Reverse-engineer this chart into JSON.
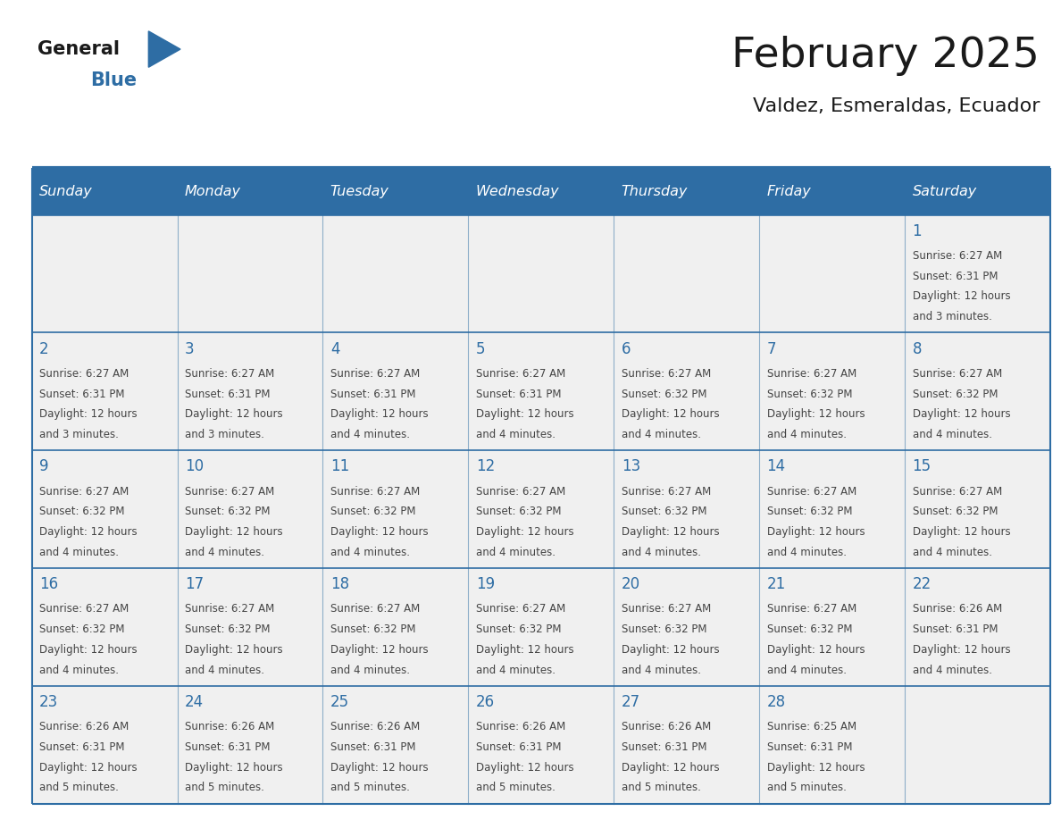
{
  "title": "February 2025",
  "subtitle": "Valdez, Esmeraldas, Ecuador",
  "days_of_week": [
    "Sunday",
    "Monday",
    "Tuesday",
    "Wednesday",
    "Thursday",
    "Friday",
    "Saturday"
  ],
  "header_bg_color": "#2E6DA4",
  "header_text_color": "#FFFFFF",
  "cell_bg_color": "#F0F0F0",
  "day_number_color": "#2E6DA4",
  "info_text_color": "#444444",
  "border_color": "#2E6DA4",
  "title_color": "#1a1a1a",
  "subtitle_color": "#1a1a1a",
  "logo_general_color": "#1a1a1a",
  "logo_blue_color": "#2E6DA4",
  "weeks": [
    [
      null,
      null,
      null,
      null,
      null,
      null,
      1
    ],
    [
      2,
      3,
      4,
      5,
      6,
      7,
      8
    ],
    [
      9,
      10,
      11,
      12,
      13,
      14,
      15
    ],
    [
      16,
      17,
      18,
      19,
      20,
      21,
      22
    ],
    [
      23,
      24,
      25,
      26,
      27,
      28,
      null
    ]
  ],
  "cell_data": {
    "1": {
      "sunrise": "6:27 AM",
      "sunset": "6:31 PM",
      "daylight_line1": "Daylight: 12 hours",
      "daylight_line2": "and 3 minutes."
    },
    "2": {
      "sunrise": "6:27 AM",
      "sunset": "6:31 PM",
      "daylight_line1": "Daylight: 12 hours",
      "daylight_line2": "and 3 minutes."
    },
    "3": {
      "sunrise": "6:27 AM",
      "sunset": "6:31 PM",
      "daylight_line1": "Daylight: 12 hours",
      "daylight_line2": "and 3 minutes."
    },
    "4": {
      "sunrise": "6:27 AM",
      "sunset": "6:31 PM",
      "daylight_line1": "Daylight: 12 hours",
      "daylight_line2": "and 4 minutes."
    },
    "5": {
      "sunrise": "6:27 AM",
      "sunset": "6:31 PM",
      "daylight_line1": "Daylight: 12 hours",
      "daylight_line2": "and 4 minutes."
    },
    "6": {
      "sunrise": "6:27 AM",
      "sunset": "6:32 PM",
      "daylight_line1": "Daylight: 12 hours",
      "daylight_line2": "and 4 minutes."
    },
    "7": {
      "sunrise": "6:27 AM",
      "sunset": "6:32 PM",
      "daylight_line1": "Daylight: 12 hours",
      "daylight_line2": "and 4 minutes."
    },
    "8": {
      "sunrise": "6:27 AM",
      "sunset": "6:32 PM",
      "daylight_line1": "Daylight: 12 hours",
      "daylight_line2": "and 4 minutes."
    },
    "9": {
      "sunrise": "6:27 AM",
      "sunset": "6:32 PM",
      "daylight_line1": "Daylight: 12 hours",
      "daylight_line2": "and 4 minutes."
    },
    "10": {
      "sunrise": "6:27 AM",
      "sunset": "6:32 PM",
      "daylight_line1": "Daylight: 12 hours",
      "daylight_line2": "and 4 minutes."
    },
    "11": {
      "sunrise": "6:27 AM",
      "sunset": "6:32 PM",
      "daylight_line1": "Daylight: 12 hours",
      "daylight_line2": "and 4 minutes."
    },
    "12": {
      "sunrise": "6:27 AM",
      "sunset": "6:32 PM",
      "daylight_line1": "Daylight: 12 hours",
      "daylight_line2": "and 4 minutes."
    },
    "13": {
      "sunrise": "6:27 AM",
      "sunset": "6:32 PM",
      "daylight_line1": "Daylight: 12 hours",
      "daylight_line2": "and 4 minutes."
    },
    "14": {
      "sunrise": "6:27 AM",
      "sunset": "6:32 PM",
      "daylight_line1": "Daylight: 12 hours",
      "daylight_line2": "and 4 minutes."
    },
    "15": {
      "sunrise": "6:27 AM",
      "sunset": "6:32 PM",
      "daylight_line1": "Daylight: 12 hours",
      "daylight_line2": "and 4 minutes."
    },
    "16": {
      "sunrise": "6:27 AM",
      "sunset": "6:32 PM",
      "daylight_line1": "Daylight: 12 hours",
      "daylight_line2": "and 4 minutes."
    },
    "17": {
      "sunrise": "6:27 AM",
      "sunset": "6:32 PM",
      "daylight_line1": "Daylight: 12 hours",
      "daylight_line2": "and 4 minutes."
    },
    "18": {
      "sunrise": "6:27 AM",
      "sunset": "6:32 PM",
      "daylight_line1": "Daylight: 12 hours",
      "daylight_line2": "and 4 minutes."
    },
    "19": {
      "sunrise": "6:27 AM",
      "sunset": "6:32 PM",
      "daylight_line1": "Daylight: 12 hours",
      "daylight_line2": "and 4 minutes."
    },
    "20": {
      "sunrise": "6:27 AM",
      "sunset": "6:32 PM",
      "daylight_line1": "Daylight: 12 hours",
      "daylight_line2": "and 4 minutes."
    },
    "21": {
      "sunrise": "6:27 AM",
      "sunset": "6:32 PM",
      "daylight_line1": "Daylight: 12 hours",
      "daylight_line2": "and 4 minutes."
    },
    "22": {
      "sunrise": "6:26 AM",
      "sunset": "6:31 PM",
      "daylight_line1": "Daylight: 12 hours",
      "daylight_line2": "and 4 minutes."
    },
    "23": {
      "sunrise": "6:26 AM",
      "sunset": "6:31 PM",
      "daylight_line1": "Daylight: 12 hours",
      "daylight_line2": "and 5 minutes."
    },
    "24": {
      "sunrise": "6:26 AM",
      "sunset": "6:31 PM",
      "daylight_line1": "Daylight: 12 hours",
      "daylight_line2": "and 5 minutes."
    },
    "25": {
      "sunrise": "6:26 AM",
      "sunset": "6:31 PM",
      "daylight_line1": "Daylight: 12 hours",
      "daylight_line2": "and 5 minutes."
    },
    "26": {
      "sunrise": "6:26 AM",
      "sunset": "6:31 PM",
      "daylight_line1": "Daylight: 12 hours",
      "daylight_line2": "and 5 minutes."
    },
    "27": {
      "sunrise": "6:26 AM",
      "sunset": "6:31 PM",
      "daylight_line1": "Daylight: 12 hours",
      "daylight_line2": "and 5 minutes."
    },
    "28": {
      "sunrise": "6:25 AM",
      "sunset": "6:31 PM",
      "daylight_line1": "Daylight: 12 hours",
      "daylight_line2": "and 5 minutes."
    }
  }
}
